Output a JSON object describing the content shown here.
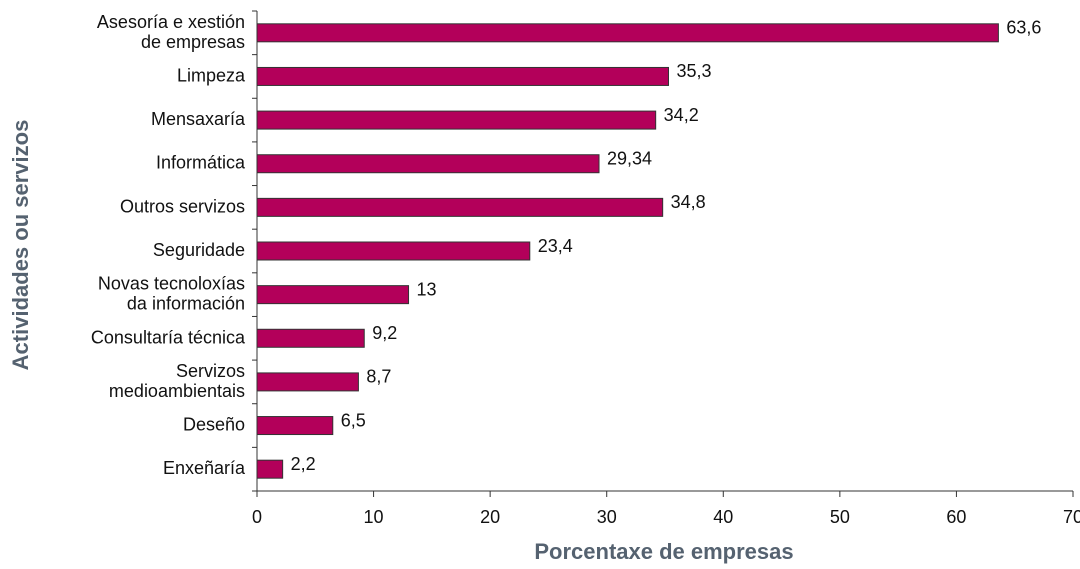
{
  "chart_data": {
    "type": "bar",
    "orientation": "horizontal",
    "x_label": "Porcentaxe de empresas",
    "y_label": "Actividades ou servizos",
    "categories": [
      "Asesoría e xestión\nde empresas",
      "Limpeza",
      "Mensaxaría",
      "Informática",
      "Outros servizos",
      "Seguridade",
      "Novas tecnoloxías\nda información",
      "Consultaría técnica",
      "Servizos\nmedioambientais",
      "Deseño",
      "Enxeñaría"
    ],
    "values": [
      63.6,
      35.3,
      34.2,
      29.34,
      34.8,
      23.4,
      13,
      9.2,
      8.7,
      6.5,
      2.2
    ],
    "value_labels": [
      "63,6",
      "35,3",
      "34,2",
      "29,34",
      "34,8",
      "23,4",
      "13",
      "9,2",
      "8,7",
      "6,5",
      "2,2"
    ],
    "color": "#b3005a",
    "xlim": [
      0,
      70
    ],
    "xticks": [
      0,
      10,
      20,
      30,
      40,
      50,
      60,
      70
    ]
  }
}
